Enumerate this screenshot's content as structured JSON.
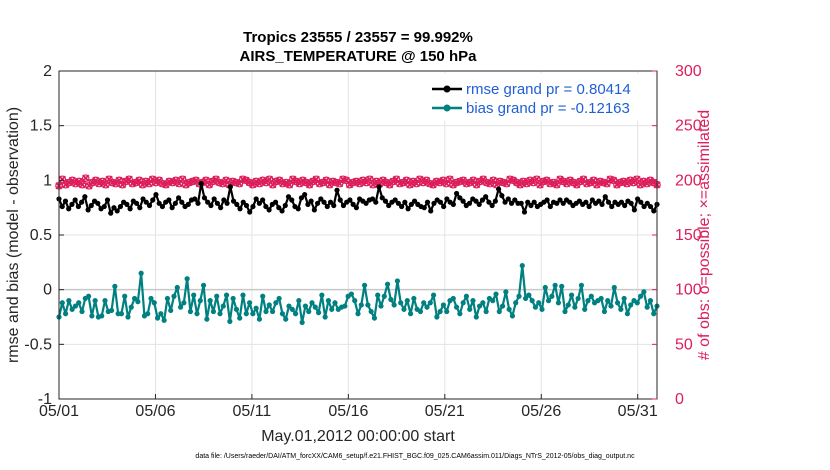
{
  "chart_data": {
    "type": "line",
    "title": "Tropics 23555 / 23557 = 99.992%",
    "subtitle": "AIRS_TEMPERATURE @ 150 hPa",
    "xlabel": "May.01,2012 00:00:00 start",
    "ylabel": "rmse and bias (model - observation)",
    "ylabel_right": "# of obs: o=possible; ×=assimilated",
    "footnote": "data file: /Users/raeder/DAI/ATM_forcXX/CAM6_setup/f.e21.FHIST_BGC.f09_025.CAM6assim.011/Diags_NTrS_2012-05/obs_diag_output.nc",
    "xlim": [
      1,
      32
    ],
    "ylim": [
      -1,
      2
    ],
    "ylim_right": [
      0,
      300
    ],
    "grid": true,
    "legend_position": "top-right",
    "x_ticks": [
      1,
      6,
      11,
      16,
      21,
      26,
      31
    ],
    "x_tick_labels": [
      "05/01",
      "05/06",
      "05/11",
      "05/16",
      "05/21",
      "05/26",
      "05/31"
    ],
    "y_ticks": [
      -1,
      -0.5,
      0,
      0.5,
      1,
      1.5,
      2
    ],
    "y_tick_labels": [
      "-1",
      "-0.5",
      "0",
      "0.5",
      "1",
      "1.5",
      "2"
    ],
    "y2_ticks": [
      0,
      50,
      100,
      150,
      200,
      250,
      300
    ],
    "y2_tick_labels": [
      "0",
      "50",
      "100",
      "150",
      "200",
      "250",
      "300"
    ],
    "colors": {
      "rmse": "#000000",
      "bias": "#008080",
      "obs": "#dc1e5a",
      "zero_line": "#c8c8c8"
    },
    "series": [
      {
        "name": "rmse grand pr = 0.80414",
        "axis": "left",
        "marker": "circle",
        "values": [
          0.83,
          0.76,
          0.81,
          0.74,
          0.78,
          0.82,
          0.76,
          0.8,
          0.85,
          0.73,
          0.77,
          0.81,
          0.79,
          0.74,
          0.76,
          0.82,
          0.7,
          0.75,
          0.72,
          0.76,
          0.8,
          0.78,
          0.74,
          0.81,
          0.79,
          0.75,
          0.83,
          0.8,
          0.77,
          0.82,
          0.87,
          0.79,
          0.76,
          0.8,
          0.82,
          0.75,
          0.79,
          0.84,
          0.8,
          0.76,
          0.78,
          0.82,
          0.83,
          0.79,
          0.97,
          0.84,
          0.8,
          0.77,
          0.83,
          0.79,
          0.75,
          0.82,
          0.79,
          0.94,
          0.81,
          0.78,
          0.74,
          0.8,
          0.77,
          0.71,
          0.76,
          0.83,
          0.79,
          0.82,
          0.76,
          0.73,
          0.78,
          0.8,
          0.75,
          0.72,
          0.77,
          0.85,
          0.82,
          0.76,
          0.74,
          0.84,
          0.87,
          0.78,
          0.81,
          0.73,
          0.79,
          0.83,
          0.8,
          0.76,
          0.8,
          0.77,
          0.91,
          0.82,
          0.77,
          0.8,
          0.82,
          0.78,
          0.75,
          0.83,
          0.81,
          0.79,
          0.82,
          0.83,
          0.8,
          0.94,
          0.84,
          0.81,
          0.77,
          0.8,
          0.82,
          0.79,
          0.76,
          0.8,
          0.74,
          0.78,
          0.81,
          0.78,
          0.76,
          0.75,
          0.8,
          0.72,
          0.79,
          0.82,
          0.8,
          0.76,
          0.83,
          0.8,
          0.78,
          0.88,
          0.84,
          0.81,
          0.77,
          0.79,
          0.83,
          0.81,
          0.78,
          0.82,
          0.85,
          0.8,
          0.77,
          0.81,
          0.92,
          0.86,
          0.8,
          0.83,
          0.79,
          0.82,
          0.79,
          0.79,
          0.71,
          0.8,
          0.77,
          0.8,
          0.76,
          0.78,
          0.8,
          0.82,
          0.76,
          0.8,
          0.79,
          0.82,
          0.79,
          0.82,
          0.8,
          0.77,
          0.79,
          0.81,
          0.78,
          0.8,
          0.76,
          0.82,
          0.79,
          0.81,
          0.78,
          0.85,
          0.8,
          0.76,
          0.8,
          0.78,
          0.8,
          0.77,
          0.81,
          0.79,
          0.73,
          0.83,
          0.8,
          0.76,
          0.79,
          0.76,
          0.72,
          0.78
        ]
      },
      {
        "name": "bias grand pr = -0.12163",
        "axis": "left",
        "marker": "circle",
        "values": [
          -0.25,
          -0.12,
          -0.22,
          -0.1,
          -0.18,
          -0.15,
          -0.12,
          -0.2,
          -0.08,
          -0.06,
          -0.24,
          -0.1,
          -0.25,
          -0.24,
          -0.1,
          -0.2,
          -0.19,
          0.03,
          -0.22,
          -0.22,
          -0.06,
          -0.25,
          -0.16,
          -0.08,
          -0.11,
          0.15,
          -0.24,
          -0.22,
          -0.08,
          -0.12,
          -0.26,
          -0.22,
          -0.28,
          -0.08,
          -0.19,
          -0.06,
          0.02,
          -0.16,
          -0.12,
          0.1,
          -0.2,
          -0.05,
          -0.22,
          -0.1,
          0.04,
          -0.27,
          -0.1,
          -0.2,
          -0.06,
          -0.22,
          -0.15,
          -0.05,
          -0.29,
          -0.08,
          -0.18,
          -0.26,
          -0.05,
          -0.22,
          -0.12,
          -0.22,
          -0.17,
          -0.27,
          -0.06,
          -0.2,
          -0.14,
          -0.2,
          -0.12,
          -0.08,
          -0.22,
          -0.27,
          -0.15,
          -0.18,
          -0.22,
          -0.1,
          -0.3,
          -0.15,
          -0.2,
          -0.12,
          -0.16,
          -0.21,
          -0.05,
          -0.25,
          -0.1,
          -0.18,
          -0.12,
          -0.18,
          -0.16,
          -0.15,
          -0.06,
          -0.04,
          -0.1,
          -0.22,
          -0.14,
          0.04,
          -0.14,
          -0.2,
          -0.26,
          -0.05,
          -0.15,
          -0.06,
          0.05,
          -0.09,
          -0.14,
          0.08,
          -0.12,
          -0.18,
          -0.1,
          -0.22,
          -0.08,
          -0.18,
          -0.2,
          -0.12,
          -0.16,
          -0.12,
          -0.05,
          -0.25,
          -0.2,
          -0.14,
          -0.2,
          -0.1,
          -0.08,
          -0.16,
          -0.22,
          -0.12,
          -0.06,
          -0.18,
          -0.1,
          -0.25,
          -0.15,
          -0.12,
          -0.2,
          -0.08,
          -0.1,
          -0.04,
          -0.2,
          -0.15,
          -0.02,
          -0.18,
          -0.24,
          -0.12,
          -0.06,
          0.22,
          -0.08,
          -0.05,
          -0.1,
          -0.16,
          -0.12,
          -0.18,
          0.02,
          -0.1,
          -0.06,
          0.04,
          -0.12,
          0.03,
          -0.2,
          -0.14,
          -0.05,
          -0.16,
          -0.08,
          0.04,
          -0.18,
          -0.1,
          -0.06,
          -0.12,
          -0.1,
          -0.08,
          -0.2,
          -0.1,
          -0.15,
          0.02,
          -0.12,
          -0.18,
          -0.08,
          -0.22,
          -0.14,
          -0.1,
          -0.12,
          -0.06,
          -0.02,
          -0.16,
          -0.1,
          -0.22,
          -0.15
        ]
      },
      {
        "name": "possible obs count",
        "axis": "right",
        "marker": "circle",
        "values": [
          195,
          201,
          196,
          198,
          200,
          197,
          199,
          196,
          202,
          195,
          198,
          200,
          197,
          199,
          196,
          201,
          198,
          197,
          200,
          196,
          199,
          201,
          197,
          198,
          200,
          196,
          199,
          197,
          201,
          198,
          200,
          197,
          196,
          199,
          198,
          200,
          197,
          201,
          196,
          198,
          199,
          200,
          197,
          198,
          200,
          196,
          199,
          201,
          198,
          197,
          200,
          196,
          199,
          198,
          197,
          201,
          200,
          198,
          196,
          199,
          197,
          200,
          198,
          201,
          196,
          199,
          200,
          197,
          198,
          196,
          201,
          199,
          197,
          200,
          198,
          196,
          199,
          201,
          197,
          198,
          200,
          196,
          199,
          198,
          197,
          201,
          200,
          196,
          198,
          199,
          197,
          200,
          198,
          201,
          196,
          199,
          197,
          200,
          198,
          196,
          199,
          201,
          197,
          198,
          200,
          196,
          199,
          197,
          201,
          198,
          200,
          197,
          196,
          199,
          198,
          200,
          197,
          201,
          196,
          198,
          199,
          200,
          197,
          198,
          200,
          196,
          199,
          201,
          198,
          197,
          200,
          196,
          199,
          198,
          197,
          201,
          200,
          198,
          196,
          199,
          197,
          200,
          198,
          201,
          196,
          199,
          200,
          197,
          198,
          196,
          201,
          199,
          197,
          200,
          198,
          196,
          199,
          201,
          197,
          198,
          200,
          196,
          199,
          198,
          197,
          201,
          200,
          196,
          198,
          199,
          197,
          200,
          198,
          201,
          196,
          199,
          197,
          200,
          198,
          196
        ]
      },
      {
        "name": "assimilated obs count",
        "axis": "right",
        "marker": "x",
        "values": [
          195,
          201,
          196,
          198,
          200,
          197,
          199,
          196,
          202,
          195,
          198,
          200,
          197,
          199,
          196,
          201,
          198,
          197,
          200,
          196,
          199,
          201,
          197,
          198,
          200,
          196,
          199,
          197,
          201,
          198,
          200,
          197,
          196,
          199,
          198,
          200,
          197,
          201,
          196,
          198,
          199,
          200,
          197,
          198,
          200,
          196,
          199,
          201,
          198,
          197,
          200,
          196,
          199,
          198,
          197,
          201,
          200,
          198,
          196,
          199,
          197,
          200,
          198,
          201,
          196,
          199,
          200,
          197,
          198,
          196,
          201,
          199,
          197,
          200,
          198,
          196,
          199,
          201,
          197,
          198,
          200,
          196,
          199,
          198,
          197,
          201,
          200,
          196,
          198,
          199,
          197,
          200,
          198,
          201,
          196,
          199,
          197,
          200,
          198,
          196,
          199,
          201,
          197,
          198,
          200,
          196,
          199,
          197,
          201,
          198,
          200,
          197,
          196,
          199,
          198,
          200,
          197,
          201,
          196,
          198,
          199,
          200,
          197,
          198,
          200,
          196,
          199,
          201,
          198,
          197,
          200,
          196,
          199,
          198,
          197,
          201,
          200,
          198,
          196,
          199,
          197,
          200,
          198,
          201,
          196,
          199,
          200,
          197,
          198,
          196,
          201,
          199,
          197,
          200,
          198,
          196,
          199,
          201,
          197,
          198,
          200,
          196,
          199,
          198,
          197,
          201,
          200,
          196,
          198,
          199,
          197,
          200,
          198,
          201,
          196,
          199,
          197,
          200,
          198,
          196
        ]
      }
    ]
  }
}
